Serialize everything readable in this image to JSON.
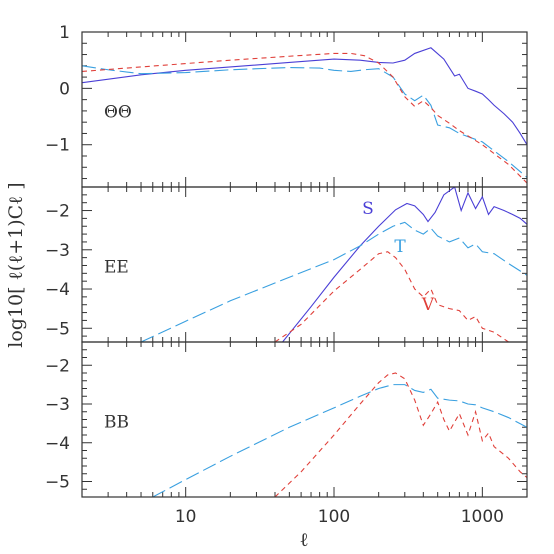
{
  "chart_data": {
    "type": "line",
    "xlabel": "ℓ",
    "ylabel": "log10[ ℓ(ℓ+1)Cℓ ]",
    "x_scale": "log",
    "xlim": [
      2,
      2000
    ],
    "x_ticks": [
      10,
      100,
      1000
    ],
    "x_tick_labels": [
      "10",
      "100",
      "1000"
    ],
    "colors": {
      "S": "#4a3fd6",
      "T": "#3aa0e0",
      "V": "#e0403a"
    },
    "line_styles": {
      "S": "solid",
      "T": "long-dash",
      "V": "short-dash"
    },
    "panels": [
      {
        "label": "ΘΘ",
        "ylim": [
          -1.75,
          1.0
        ],
        "y_ticks": [
          1,
          0,
          -1
        ],
        "y_tick_labels": [
          "1",
          "0",
          "−1"
        ],
        "series": [
          {
            "key": "S",
            "x": [
              2,
              5,
              10,
              20,
              50,
              100,
              150,
              200,
              250,
              300,
              350,
              450,
              550,
              650,
              700,
              800,
              900,
              1000,
              1100,
              1200,
              1400,
              1600,
              1800,
              2000
            ],
            "y": [
              0.1,
              0.24,
              0.32,
              0.38,
              0.46,
              0.52,
              0.5,
              0.46,
              0.45,
              0.5,
              0.62,
              0.72,
              0.52,
              0.22,
              0.25,
              0.0,
              -0.05,
              -0.1,
              -0.2,
              -0.3,
              -0.45,
              -0.6,
              -0.8,
              -1.0
            ]
          },
          {
            "key": "T",
            "x": [
              2,
              3,
              5,
              10,
              20,
              50,
              80,
              100,
              130,
              160,
              200,
              250,
              300,
              350,
              400,
              450,
              500,
              600,
              700,
              1000,
              1500,
              2000
            ],
            "y": [
              0.4,
              0.33,
              0.26,
              0.28,
              0.33,
              0.37,
              0.36,
              0.32,
              0.3,
              0.33,
              0.35,
              0.2,
              -0.1,
              -0.22,
              -0.12,
              -0.3,
              -0.65,
              -0.7,
              -0.8,
              -0.95,
              -1.3,
              -1.58
            ]
          },
          {
            "key": "V",
            "x": [
              2,
              5,
              10,
              20,
              50,
              100,
              130,
              160,
              200,
              250,
              300,
              350,
              400,
              450,
              500,
              600,
              700,
              1000,
              1500,
              2000
            ],
            "y": [
              0.3,
              0.38,
              0.44,
              0.5,
              0.57,
              0.62,
              0.62,
              0.58,
              0.45,
              0.2,
              -0.15,
              -0.32,
              -0.22,
              -0.34,
              -0.48,
              -0.62,
              -0.75,
              -1.0,
              -1.35,
              -1.68
            ]
          }
        ]
      },
      {
        "label": "EE",
        "ylim": [
          -5.35,
          -1.4
        ],
        "y_ticks": [
          -2,
          -3,
          -4,
          -5
        ],
        "y_tick_labels": [
          "−2",
          "−3",
          "−4",
          "−5"
        ],
        "series": [
          {
            "key": "S",
            "name": "S",
            "x": [
              45,
              70,
              100,
              150,
              200,
              260,
              310,
              350,
              400,
              430,
              480,
              550,
              650,
              720,
              800,
              900,
              1000,
              1100,
              1200,
              1400,
              1600,
              1800,
              2000
            ],
            "y": [
              -5.35,
              -4.45,
              -3.7,
              -2.9,
              -2.4,
              -1.98,
              -1.82,
              -1.88,
              -2.1,
              -2.28,
              -2.05,
              -1.6,
              -1.4,
              -2.0,
              -1.55,
              -1.95,
              -1.65,
              -2.1,
              -1.9,
              -2.0,
              -2.1,
              -2.2,
              -2.35
            ]
          },
          {
            "key": "T",
            "name": "T",
            "x": [
              5,
              10,
              20,
              50,
              100,
              150,
              200,
              250,
              300,
              350,
              400,
              450,
              500,
              600,
              700,
              800,
              900,
              1000,
              1200,
              1500,
              2000
            ],
            "y": [
              -5.35,
              -4.82,
              -4.3,
              -3.7,
              -3.25,
              -2.9,
              -2.6,
              -2.4,
              -2.3,
              -2.5,
              -2.6,
              -2.45,
              -2.65,
              -2.8,
              -2.7,
              -2.95,
              -2.85,
              -3.05,
              -3.1,
              -3.35,
              -3.65
            ]
          },
          {
            "key": "V",
            "name": "V",
            "x": [
              40,
              60,
              100,
              150,
              200,
              230,
              260,
              300,
              350,
              400,
              450,
              500,
              600,
              700,
              800,
              900,
              1000,
              1200,
              1500,
              2000
            ],
            "y": [
              -5.35,
              -4.9,
              -4.05,
              -3.5,
              -3.1,
              -3.05,
              -3.2,
              -3.5,
              -4.0,
              -4.2,
              -4.0,
              -4.4,
              -4.5,
              -4.55,
              -4.8,
              -4.7,
              -5.0,
              -5.1,
              -5.35,
              -5.35
            ]
          }
        ]
      },
      {
        "label": "BB",
        "ylim": [
          -5.4,
          -1.4
        ],
        "y_ticks": [
          -2,
          -3,
          -4,
          -5
        ],
        "y_tick_labels": [
          "−2",
          "−3",
          "−4",
          "−5"
        ],
        "series": [
          {
            "key": "T",
            "x": [
              6,
              10,
              20,
              50,
              100,
              150,
              200,
              250,
              300,
              350,
              400,
              450,
              500,
              600,
              700,
              800,
              900,
              1000,
              1200,
              1500,
              2000
            ],
            "y": [
              -5.4,
              -4.95,
              -4.35,
              -3.6,
              -3.1,
              -2.8,
              -2.6,
              -2.5,
              -2.5,
              -2.65,
              -2.7,
              -2.62,
              -2.85,
              -2.9,
              -2.92,
              -3.0,
              -3.02,
              -3.1,
              -3.2,
              -3.35,
              -3.6
            ]
          },
          {
            "key": "V",
            "x": [
              40,
              60,
              100,
              150,
              200,
              230,
              260,
              300,
              350,
              400,
              450,
              500,
              550,
              600,
              700,
              800,
              900,
              1000,
              1100,
              1200,
              1500,
              1800,
              2000
            ],
            "y": [
              -5.4,
              -4.75,
              -3.8,
              -3.0,
              -2.45,
              -2.25,
              -2.2,
              -2.35,
              -2.9,
              -3.55,
              -3.25,
              -2.95,
              -3.4,
              -3.7,
              -3.25,
              -3.8,
              -3.2,
              -3.95,
              -3.75,
              -4.1,
              -4.4,
              -4.75,
              -4.9
            ]
          }
        ]
      }
    ]
  }
}
